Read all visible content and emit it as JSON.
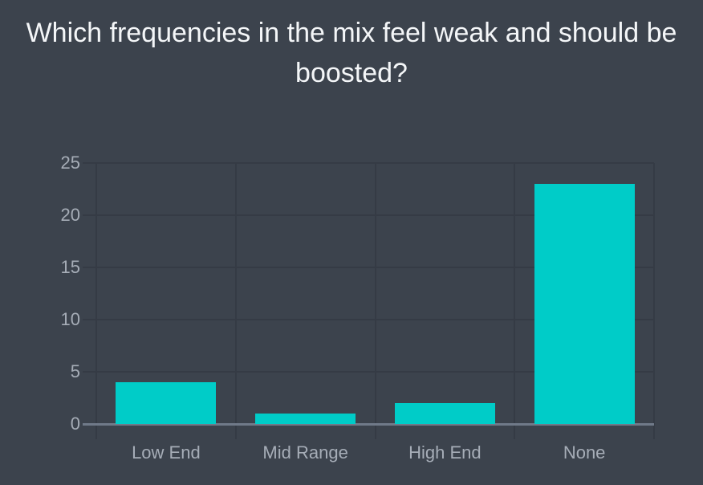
{
  "title": "Which frequencies in the mix feel weak and should be boosted?",
  "colors": {
    "background": "#3C434D",
    "bar": "#00CCC8",
    "gridline": "#353B45",
    "axis_line": "#707A89",
    "axis_label": "#A6ADB7",
    "title_text": "#F4F6F8"
  },
  "chart_data": {
    "type": "bar",
    "title": "Which frequencies in the mix feel weak and should be boosted?",
    "categories": [
      "Low End",
      "Mid Range",
      "High End",
      "None"
    ],
    "values": [
      4,
      1,
      2,
      23
    ],
    "xlabel": "",
    "ylabel": "",
    "ylim": [
      0,
      25
    ],
    "yticks": [
      0,
      5,
      10,
      15,
      20,
      25
    ],
    "grid": true,
    "legend": false,
    "legend_position": "none",
    "bar_fraction_of_column": 0.72
  }
}
